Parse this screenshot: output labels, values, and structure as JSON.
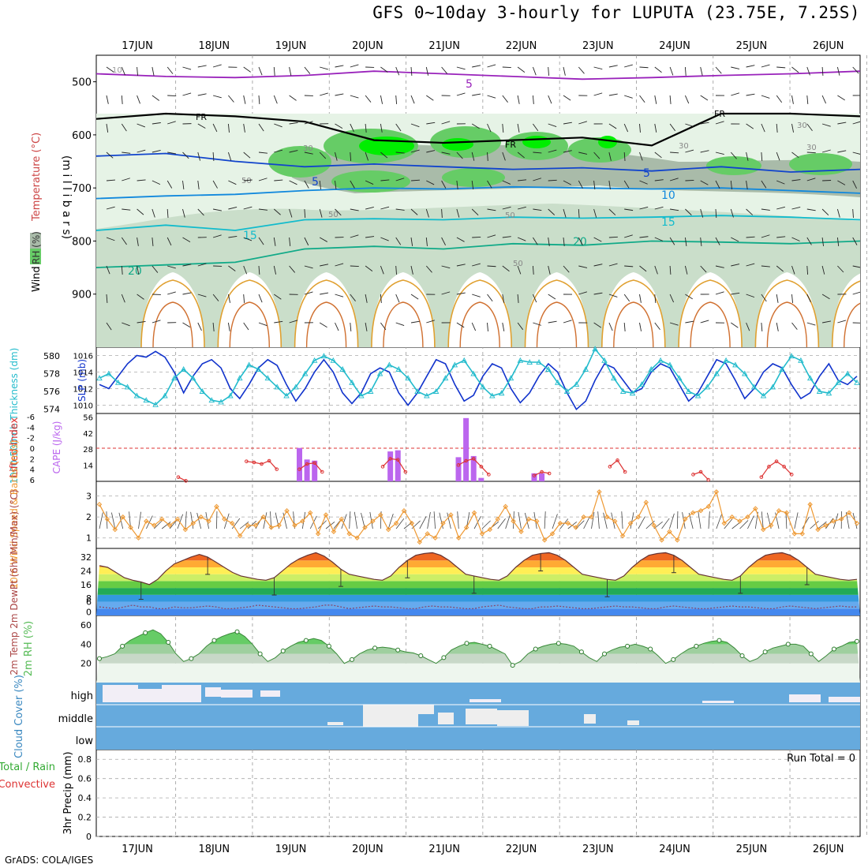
{
  "title": "GFS 0~10day 3-hourly for LUPUTA (23.75E, 7.25S)",
  "footer": "GrADS: COLA/IGES",
  "colors": {
    "rh_light": "#e6f3e6",
    "rh_mid": "#c3d8c3",
    "rh_dark": "#a9bba9",
    "rh_green": "#66cc66",
    "rh_bright": "#00ee00",
    "slp": "#1133cc",
    "thickness": "#22bbcc",
    "cape": "#bb66ee",
    "lifted": "#dd3333",
    "wind10m": "#ee9933",
    "rh2m": "#55bb55",
    "cloud": "#66aadd",
    "cloud_white": "#f2eef6"
  },
  "chart_data": [
    {
      "id": "upper_air",
      "type": "heatmap",
      "ylabel": "(m i l l i b a r s)",
      "legend_wind": "Wind (m/s)",
      "legend_temp": "Temperature (°C)",
      "legend_rh": "RH (%)",
      "x_ticks": [
        "17JUN",
        "18JUN",
        "19JUN",
        "20JUN",
        "21JUN",
        "22JUN",
        "23JUN",
        "24JUN",
        "25JUN",
        "26JUN"
      ],
      "y_ticks": [
        500,
        600,
        700,
        800,
        900
      ],
      "ylim": [
        1000,
        450
      ],
      "contour_labels": [
        "FR",
        "FR",
        "FR",
        "5",
        "5",
        "5",
        "10",
        "15",
        "15",
        "20",
        "20",
        "10",
        "30",
        "30",
        "30",
        "30",
        "50",
        "50",
        "50",
        "50"
      ],
      "temperature_isotherms": [
        {
          "label": "5",
          "pressures": [
            485,
            490,
            492,
            488,
            480,
            485,
            490,
            495,
            492,
            488,
            485,
            480
          ]
        },
        {
          "label": "FR",
          "pressures": [
            570,
            560,
            565,
            575,
            610,
            615,
            610,
            605,
            620,
            560,
            560,
            565
          ]
        },
        {
          "label": "5",
          "pressures": [
            640,
            635,
            650,
            660,
            655,
            660,
            665,
            662,
            668,
            660,
            670,
            665
          ]
        },
        {
          "label": "10",
          "pressures": [
            720,
            715,
            712,
            705,
            700,
            702,
            698,
            700,
            702,
            700,
            705,
            710
          ]
        },
        {
          "label": "15",
          "pressures": [
            780,
            770,
            780,
            760,
            758,
            760,
            755,
            757,
            755,
            752,
            755,
            760
          ]
        },
        {
          "label": "20",
          "pressures": [
            850,
            845,
            840,
            815,
            810,
            815,
            805,
            808,
            800,
            802,
            805,
            800
          ]
        }
      ]
    },
    {
      "id": "slp_thickness",
      "type": "line",
      "ylabel_left": "1000-500mb Thickness (dm)",
      "ylabel_right": "SLP (mb)",
      "left_ticks": [
        580,
        578,
        576,
        574
      ],
      "right_ticks": [
        1016,
        1014,
        1012,
        1010
      ],
      "slp_ylim": [
        1009,
        1017
      ],
      "thk_ylim": [
        573.5,
        581
      ],
      "series": [
        {
          "name": "SLP (mb)",
          "values": [
            1012.5,
            1012.0,
            1013.5,
            1015.0,
            1016.0,
            1015.8,
            1016.5,
            1015.8,
            1014.0,
            1011.5,
            1013.5,
            1015.0,
            1015.5,
            1014.5,
            1012.0,
            1010.8,
            1012.5,
            1014.5,
            1015.5,
            1014.8,
            1012.5,
            1010.5,
            1012.0,
            1014.0,
            1015.5,
            1014.0,
            1011.5,
            1010.2,
            1011.5,
            1013.8,
            1014.5,
            1014.0,
            1011.5,
            1010.0,
            1011.5,
            1013.5,
            1015.5,
            1015.0,
            1012.5,
            1010.5,
            1011.2,
            1013.5,
            1015.0,
            1014.5,
            1012.0,
            1010.3,
            1011.5,
            1013.5,
            1015.0,
            1014.0,
            1011.5,
            1009.5,
            1010.5,
            1013.0,
            1015.0,
            1014.5,
            1013.0,
            1011.5,
            1012.0,
            1014.0,
            1015.0,
            1014.5,
            1012.5,
            1010.5,
            1011.5,
            1013.5,
            1015.5,
            1015.0,
            1013.0,
            1010.8,
            1012.0,
            1014.0,
            1015.0,
            1014.5,
            1012.5,
            1010.8,
            1011.5,
            1013.5,
            1015.0,
            1013.0,
            1012.5,
            1013.5
          ]
        },
        {
          "name": "1000-500mb Thickness (dm)",
          "values": [
            577.5,
            578.0,
            577.0,
            576.5,
            575.5,
            575.0,
            574.5,
            575.5,
            577.5,
            578.5,
            577.5,
            576.0,
            575.0,
            574.8,
            575.5,
            577.5,
            579.0,
            578.5,
            577.5,
            576.5,
            575.5,
            576.5,
            578.0,
            579.5,
            580.0,
            579.5,
            578.5,
            577.0,
            575.5,
            576.0,
            578.0,
            579.0,
            578.5,
            577.5,
            576.0,
            575.5,
            576.0,
            577.5,
            579.0,
            579.5,
            578.0,
            576.5,
            575.5,
            575.8,
            577.5,
            579.5,
            579.3,
            579.3,
            578.5,
            577.0,
            576.0,
            576.8,
            578.5,
            580.8,
            579.5,
            577.5,
            576.0,
            575.8,
            576.8,
            578.5,
            579.5,
            579.0,
            577.5,
            576.0,
            575.5,
            576.5,
            578.0,
            579.5,
            579.0,
            578.0,
            576.5,
            575.5,
            576.5,
            578.5,
            580.0,
            579.5,
            577.5,
            576.0,
            575.8,
            577.0,
            578.0,
            577.0
          ]
        }
      ]
    },
    {
      "id": "cape_li",
      "type": "bar",
      "ylabel_left": "Lifted Index",
      "ylabel_right": "CAPE (J/kg)",
      "left_ticks": [
        "-6",
        "-4",
        "-2",
        "0",
        "2",
        "4",
        "6"
      ],
      "right_ticks": [
        56,
        42,
        28,
        14
      ],
      "cape_ylim": [
        0,
        59
      ],
      "series": [
        {
          "name": "CAPE (J/kg)",
          "bars": [
            [
              1,
              0
            ],
            [
              26,
              29
            ],
            [
              27,
              19
            ],
            [
              28,
              18
            ],
            [
              38,
              26
            ],
            [
              39,
              27
            ],
            [
              47,
              21
            ],
            [
              48,
              55
            ],
            [
              49,
              22
            ],
            [
              50,
              3
            ],
            [
              57,
              7
            ],
            [
              58,
              7
            ]
          ]
        },
        {
          "name": "Lifted Index",
          "segments": [
            [
              [
                10,
                5.5
              ],
              [
                11,
                6.2
              ]
            ],
            [
              [
                19,
                2.5
              ],
              [
                20,
                2.7
              ],
              [
                21,
                3.0
              ],
              [
                22,
                2.4
              ],
              [
                23,
                4.0
              ]
            ],
            [
              [
                26,
                4.0
              ],
              [
                27,
                3.0
              ],
              [
                28,
                2.8
              ],
              [
                29,
                4.5
              ]
            ],
            [
              [
                37,
                3.5
              ],
              [
                38,
                2.0
              ],
              [
                39,
                2.2
              ],
              [
                40,
                4.5
              ]
            ],
            [
              [
                47,
                3.2
              ],
              [
                48,
                2.4
              ],
              [
                49,
                2.0
              ],
              [
                50,
                3.5
              ],
              [
                51,
                5.0
              ]
            ],
            [
              [
                57,
                5.2
              ],
              [
                58,
                4.5
              ],
              [
                59,
                4.8
              ]
            ],
            [
              [
                67,
                3.5
              ],
              [
                68,
                2.3
              ],
              [
                69,
                4.5
              ]
            ],
            [
              [
                78,
                5.0
              ],
              [
                79,
                4.5
              ],
              [
                80,
                6.0
              ]
            ],
            [
              [
                87,
                5.5
              ],
              [
                88,
                3.5
              ],
              [
                89,
                2.5
              ],
              [
                90,
                3.5
              ],
              [
                91,
                5.0
              ]
            ]
          ]
        }
      ]
    },
    {
      "id": "wind10m",
      "type": "line",
      "ylabel": "10m Wind Speed & Barbs (m/s)",
      "y_ticks": [
        3,
        2,
        1
      ],
      "ylim": [
        0.5,
        3.7
      ],
      "series": [
        {
          "name": "10m Wind Speed",
          "values": [
            2.6,
            1.9,
            1.4,
            2.0,
            1.5,
            1.0,
            1.8,
            1.6,
            1.9,
            1.6,
            1.9,
            1.4,
            1.7,
            2.0,
            1.8,
            2.5,
            1.9,
            1.7,
            1.1,
            1.6,
            1.6,
            2.0,
            1.5,
            1.6,
            2.3,
            1.6,
            1.8,
            2.2,
            1.2,
            2.1,
            1.3,
            1.9,
            1.2,
            1.0,
            1.5,
            1.8,
            2.1,
            1.4,
            1.7,
            2.3,
            1.7,
            0.8,
            1.2,
            1.0,
            1.7,
            2.1,
            1.0,
            1.5,
            2.2,
            1.2,
            1.4,
            1.9,
            2.5,
            1.8,
            1.3,
            1.9,
            1.8,
            0.9,
            1.2,
            1.7,
            1.7,
            1.5,
            2.0,
            2.0,
            3.2,
            2.0,
            1.8,
            1.1,
            1.7,
            2.0,
            2.7,
            1.6,
            0.9,
            1.3,
            0.9,
            1.9,
            2.2,
            2.3,
            2.5,
            3.2,
            1.7,
            2.0,
            1.8,
            2.0,
            2.4,
            1.4,
            1.6,
            2.3,
            2.2,
            1.2,
            1.2,
            2.6,
            1.4,
            1.6,
            1.8,
            1.9,
            2.2,
            1.7
          ]
        }
      ]
    },
    {
      "id": "temp2m",
      "type": "area",
      "ylabel": "2m Temp 2m DewPt (6hr Min/Max) (°C)",
      "y_ticks": [
        32,
        24,
        16,
        8,
        6,
        0
      ],
      "ylim": [
        -2,
        37
      ],
      "series": [
        {
          "name": "2m Temp",
          "values": [
            27,
            26,
            23,
            20,
            18.5,
            17.5,
            16,
            19,
            24,
            28,
            30,
            32,
            33.5,
            32,
            29,
            26,
            23,
            21,
            20,
            19,
            18.5,
            20,
            24,
            28,
            31,
            33,
            34.5,
            32.5,
            29,
            25,
            22,
            21,
            20,
            19,
            18.5,
            21,
            26,
            30,
            33,
            34,
            34.5,
            33,
            30,
            26,
            22,
            21,
            20,
            19,
            18.5,
            21,
            26,
            30,
            33,
            34,
            34.5,
            33,
            30,
            26,
            22,
            21,
            20,
            19,
            18.5,
            21,
            26,
            30,
            33,
            34,
            34.5,
            33,
            30,
            26,
            22,
            21,
            20,
            19,
            18.5,
            21,
            26,
            30,
            33,
            34,
            34.5,
            33,
            30,
            26,
            22,
            21,
            20,
            19,
            18.5,
            19
          ]
        },
        {
          "name": "2m DewPt",
          "values": [
            3,
            2.5,
            2,
            3,
            4,
            3,
            3,
            2,
            2,
            3,
            2.5,
            2.5,
            3,
            3.5,
            3,
            2,
            2,
            2.5,
            3,
            4,
            3.5,
            3,
            2.5,
            2,
            2,
            2.5,
            3,
            4,
            4,
            3,
            2,
            2.5,
            3,
            3.5,
            3,
            3,
            2.5,
            2,
            2,
            3,
            3.5,
            3,
            3,
            2.5,
            2,
            2,
            3,
            3.5,
            4,
            3,
            2.5,
            2,
            2,
            3,
            3,
            3.5,
            3,
            2.5,
            2,
            2,
            2.5,
            3,
            3.5,
            3,
            3,
            2.5,
            2,
            2,
            3,
            3.5,
            3,
            2.5,
            2,
            2,
            2.5,
            3,
            3.5,
            3,
            3,
            2.5,
            2,
            2,
            3,
            3.5,
            3,
            2.5,
            2,
            2.5,
            3,
            3.5,
            3,
            3
          ]
        }
      ]
    },
    {
      "id": "rh2m",
      "type": "area",
      "ylabel": "2m RH (%)",
      "y_ticks": [
        60,
        40,
        20
      ],
      "ylim": [
        0,
        70
      ],
      "series": [
        {
          "name": "2m RH",
          "values": [
            25,
            27,
            30,
            38,
            44,
            48,
            52,
            55,
            51,
            42,
            30,
            22,
            25,
            30,
            38,
            44,
            48,
            51,
            53,
            48,
            40,
            30,
            22,
            26,
            33,
            38,
            42,
            44,
            46,
            44,
            38,
            30,
            20,
            24,
            30,
            34,
            36,
            37,
            36,
            34,
            32,
            31,
            28,
            24,
            20,
            26,
            34,
            38,
            41,
            42,
            40,
            38,
            34,
            30,
            18,
            22,
            30,
            35,
            38,
            40,
            41,
            40,
            38,
            32,
            26,
            22,
            30,
            34,
            37,
            38,
            40,
            38,
            35,
            28,
            20,
            24,
            30,
            35,
            38,
            41,
            43,
            44,
            42,
            36,
            28,
            22,
            25,
            32,
            36,
            38,
            40,
            40,
            38,
            30,
            22,
            28,
            35,
            38,
            42,
            43
          ]
        }
      ]
    },
    {
      "id": "cloud_cover",
      "type": "bar",
      "ylabel": "Cloud Cover (%)",
      "levels": [
        "high",
        "middle",
        "low"
      ]
    },
    {
      "id": "precip",
      "type": "bar",
      "ylabel": "3hr Precip (mm)",
      "legend_total": "Total / Rain",
      "legend_conv": "Convective",
      "run_total": "Run Total = 0",
      "y_ticks": [
        "0.8",
        "0.6",
        "0.4",
        "0.2",
        "0"
      ],
      "ylim": [
        0,
        0.9
      ],
      "values": []
    }
  ]
}
